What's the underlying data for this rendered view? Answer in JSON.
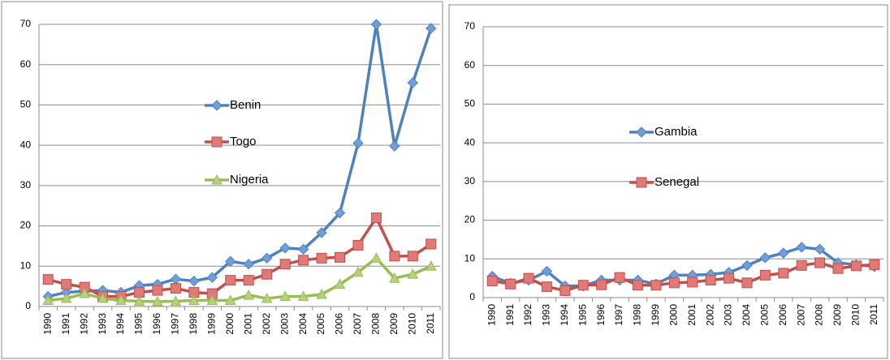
{
  "chart_data": [
    {
      "type": "line",
      "categories": [
        "1990",
        "1991",
        "1992",
        "1993",
        "1994",
        "1995",
        "1996",
        "1997",
        "1998",
        "1999",
        "2000",
        "2001",
        "2002",
        "2003",
        "2004",
        "2005",
        "2006",
        "2007",
        "2008",
        "2009",
        "2010",
        "2011"
      ],
      "ylim": [
        0,
        70
      ],
      "yticks": [
        0,
        10,
        20,
        30,
        40,
        50,
        60,
        70
      ],
      "grid": true,
      "series": [
        {
          "name": "Benin",
          "color": "#4f81bd",
          "marker": "diamond",
          "values": [
            2.5,
            3.5,
            3.8,
            4,
            3.5,
            5.2,
            5.5,
            6.8,
            6.3,
            7.2,
            11.2,
            10.5,
            12,
            14.5,
            14.2,
            18.3,
            23.2,
            40.5,
            70,
            39.8,
            55.5,
            69
          ]
        },
        {
          "name": "Togo",
          "color": "#c0504d",
          "marker": "square",
          "values": [
            6.7,
            5.5,
            4.8,
            2.5,
            2.5,
            3.5,
            4,
            4.5,
            3.5,
            3.2,
            6.5,
            6.5,
            8,
            10.5,
            11.5,
            12,
            12.2,
            15.2,
            22,
            12.5,
            12.5,
            15.5
          ]
        },
        {
          "name": "Nigeria",
          "color": "#9bbb59",
          "marker": "triangle",
          "values": [
            1.5,
            2,
            3.2,
            2,
            1.5,
            1.3,
            1.2,
            1.3,
            1.5,
            1.5,
            1.5,
            2.8,
            2,
            2.5,
            2.5,
            3,
            5.5,
            8.5,
            12,
            7,
            8,
            10
          ]
        }
      ]
    },
    {
      "type": "line",
      "categories": [
        "1990",
        "1991",
        "1992",
        "1993",
        "1994",
        "1995",
        "1996",
        "1997",
        "1998",
        "1999",
        "2000",
        "2001",
        "2002",
        "2003",
        "2004",
        "2005",
        "2006",
        "2007",
        "2008",
        "2009",
        "2010",
        "2011"
      ],
      "ylim": [
        0,
        70
      ],
      "yticks": [
        0,
        10,
        20,
        30,
        40,
        50,
        60,
        70
      ],
      "grid": true,
      "series": [
        {
          "name": "Gambia",
          "color": "#4f81bd",
          "marker": "diamond",
          "values": [
            5.5,
            3.7,
            4.5,
            6.8,
            3,
            3,
            4.5,
            4.5,
            4.5,
            3.5,
            5.8,
            5.8,
            6,
            6.5,
            8.3,
            10.3,
            11.5,
            13,
            12.5,
            9,
            8.5,
            8
          ]
        },
        {
          "name": "Senegal",
          "color": "#c0504d",
          "marker": "square",
          "values": [
            4.3,
            3.5,
            5,
            2.8,
            1.8,
            3.2,
            3.3,
            5.2,
            3.2,
            3.2,
            3.8,
            4,
            4.5,
            5,
            3.8,
            5.8,
            6.3,
            8.3,
            9,
            7.5,
            8.2,
            8.5
          ]
        }
      ]
    }
  ]
}
